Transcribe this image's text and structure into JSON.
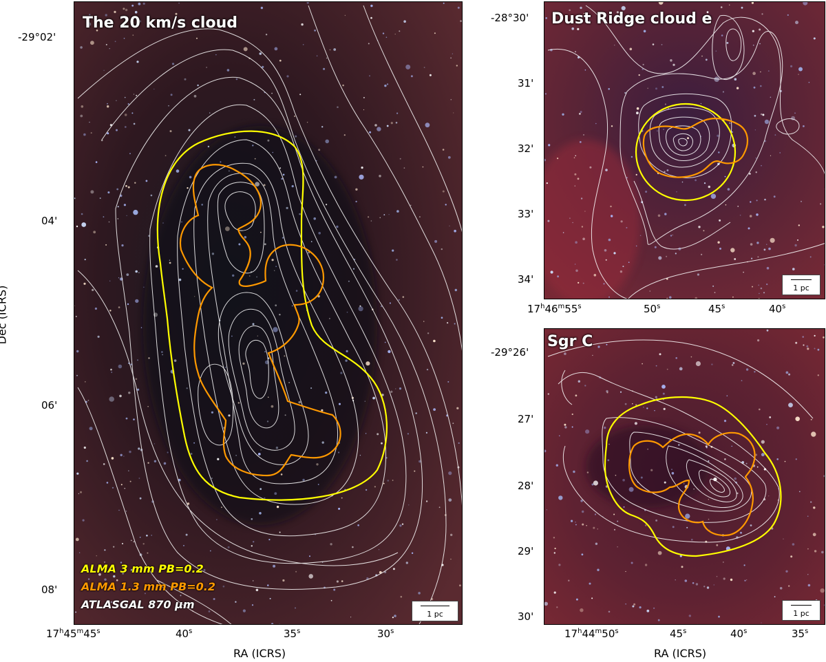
{
  "colors": {
    "alma3mm": "#ffff00",
    "alma13mm": "#ff9900",
    "atlasgal": "#ffffff"
  },
  "left": {
    "title": "The 20 km/s cloud",
    "legend": {
      "alma3": "ALMA 3 mm PB=0.2",
      "alma13": "ALMA 1.3 mm PB=0.2",
      "atlasgal": "ATLASGAL 870 µm"
    },
    "scalebar": "1 pc",
    "yticks": [
      "-29°02'",
      "04'",
      "06'",
      "08'"
    ],
    "xticks": [
      {
        "h": "17",
        "hu": "h",
        "m": "45",
        "mu": "m",
        "s": "45",
        "su": "s"
      },
      {
        "s": "40",
        "su": "s"
      },
      {
        "s": "35",
        "su": "s"
      },
      {
        "s": "30",
        "su": "s"
      }
    ],
    "xlabel": "RA (ICRS)",
    "ylabel": "Dec (ICRS)"
  },
  "topright": {
    "title": "Dust Ridge cloud e",
    "scalebar": "1 pc",
    "yticks": [
      "-28°30'",
      "31'",
      "32'",
      "33'",
      "34'"
    ],
    "xticks": [
      {
        "h": "17",
        "hu": "h",
        "m": "46",
        "mu": "m",
        "s": "55",
        "su": "s"
      },
      {
        "s": "50",
        "su": "s"
      },
      {
        "s": "45",
        "su": "s"
      },
      {
        "s": "40",
        "su": "s"
      }
    ]
  },
  "bottomright": {
    "title": "Sgr C",
    "scalebar": "1 pc",
    "yticks": [
      "-29°26'",
      "27'",
      "28'",
      "29'",
      "30'"
    ],
    "xticks": [
      {
        "h": "17",
        "hu": "h",
        "m": "44",
        "mu": "m",
        "s": "50",
        "su": "s"
      },
      {
        "s": "45",
        "su": "s"
      },
      {
        "s": "40",
        "su": "s"
      },
      {
        "s": "35",
        "su": "s"
      }
    ],
    "xlabel": "RA (ICRS)"
  }
}
